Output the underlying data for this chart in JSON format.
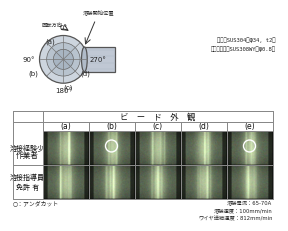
{
  "bg_color": "#ffffff",
  "table_header": "ビ　ー　ド　外　観",
  "row1_label": "溶接経験少",
  "row2_label": "溶接指導員\n免許 有",
  "col_labels": [
    "(a)",
    "(b)",
    "(c)",
    "(d)",
    "(e)"
  ],
  "row_header": "作業者",
  "material_text": "母材：SUS304（φ34, t2）\n溶接ワイヤ：SUS308WY（φ0.8）",
  "bottom_note": "○：アンダカット",
  "bottom_right": "溶接電流：65-70A\n溶接速度：100mm/min\nワイヤ送給速度：812mm/min",
  "circle_row1": [
    1,
    4
  ],
  "circle_row2": [],
  "label_rotation": "回転方向",
  "label_start": "溶接開始位置",
  "angle_0": "0°",
  "angle_90": "90°",
  "angle_180": "180°",
  "angle_270": "270°",
  "pos_a": "(a)",
  "pos_b": "(b)",
  "pos_c": "(c)",
  "pos_d": "(d)"
}
